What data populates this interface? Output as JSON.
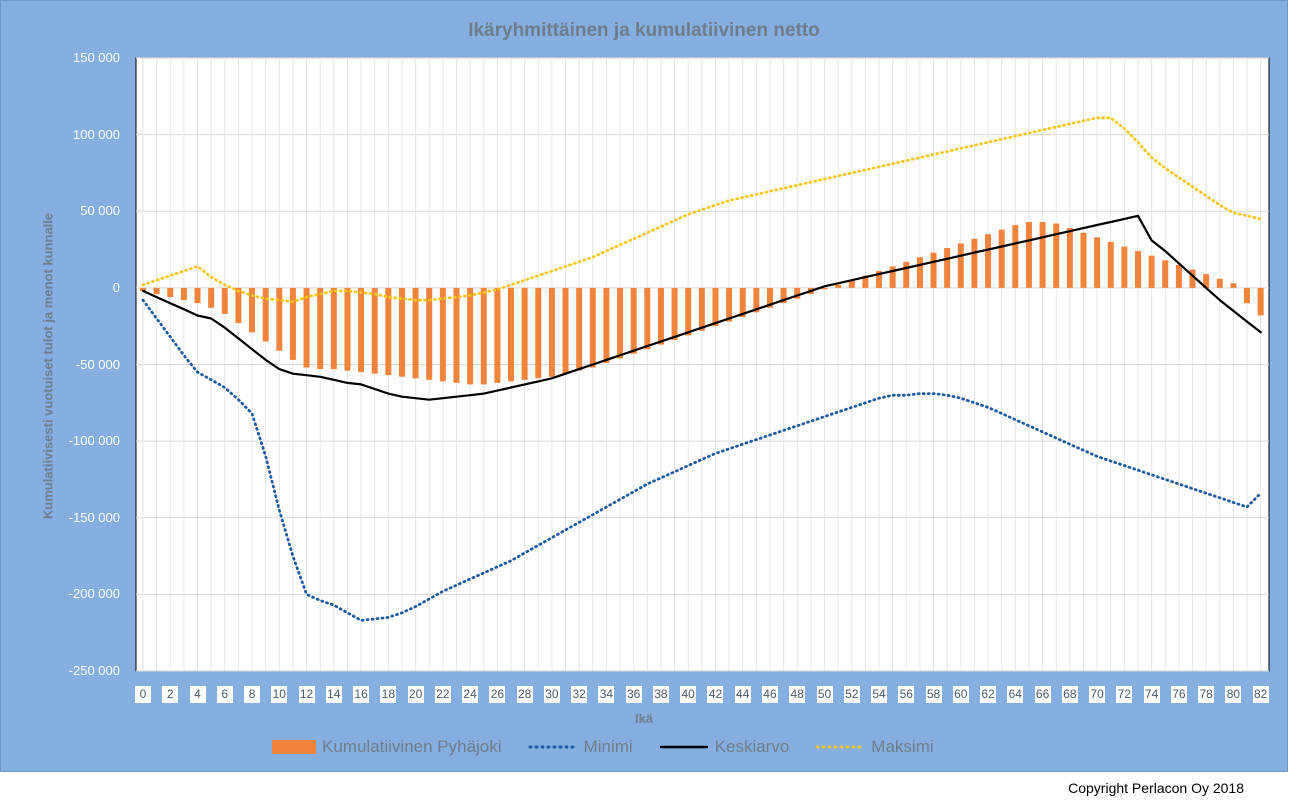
{
  "chart_data": {
    "type": "bar",
    "title": "Ikäryhmittäinen ja kumulatiivinen netto",
    "xlabel": "Ikä",
    "ylabel": "Kumulatiivisesti vuotuiset tulot ja menot kunnalle",
    "ylim": [
      -250000,
      150000
    ],
    "y_ticks": [
      "150 000",
      "100 000",
      "50 000",
      "0",
      "-50 000",
      "-100 000",
      "-150 000",
      "-200 000",
      "-250 000"
    ],
    "y_tick_values": [
      150000,
      100000,
      50000,
      0,
      -50000,
      -100000,
      -150000,
      -200000,
      -250000
    ],
    "x": [
      0,
      1,
      2,
      3,
      4,
      5,
      6,
      7,
      8,
      9,
      10,
      11,
      12,
      13,
      14,
      15,
      16,
      17,
      18,
      19,
      20,
      21,
      22,
      23,
      24,
      25,
      26,
      27,
      28,
      29,
      30,
      31,
      32,
      33,
      34,
      35,
      36,
      37,
      38,
      39,
      40,
      41,
      42,
      43,
      44,
      45,
      46,
      47,
      48,
      49,
      50,
      51,
      52,
      53,
      54,
      55,
      56,
      57,
      58,
      59,
      60,
      61,
      62,
      63,
      64,
      65,
      66,
      67,
      68,
      69,
      70,
      71,
      72,
      73,
      74,
      75,
      76,
      77,
      78,
      79,
      80,
      81,
      82
    ],
    "x_tick_labels": [
      "0",
      "2",
      "4",
      "6",
      "8",
      "10",
      "12",
      "14",
      "16",
      "18",
      "20",
      "22",
      "24",
      "26",
      "28",
      "30",
      "32",
      "34",
      "36",
      "38",
      "40",
      "42",
      "44",
      "46",
      "48",
      "50",
      "52",
      "54",
      "56",
      "58",
      "60",
      "62",
      "64",
      "66",
      "68",
      "70",
      "72",
      "74",
      "76",
      "78",
      "80",
      "82"
    ],
    "grid": true,
    "legend_position": "bottom",
    "series": [
      {
        "name": "Kumulatiivinen Pyhäjoki",
        "kind": "bar",
        "color": "#f0843c",
        "values": [
          -2000,
          -4000,
          -6000,
          -8000,
          -10000,
          -13000,
          -17000,
          -23000,
          -29000,
          -35000,
          -41000,
          -47000,
          -52000,
          -53000,
          -53000,
          -54000,
          -55000,
          -56000,
          -57000,
          -58000,
          -59000,
          -60000,
          -61000,
          -62000,
          -63000,
          -63000,
          -62000,
          -61000,
          -60000,
          -59000,
          -58000,
          -56000,
          -54000,
          -52000,
          -49000,
          -46000,
          -43000,
          -40000,
          -37000,
          -34000,
          -31000,
          -28000,
          -25000,
          -22000,
          -19000,
          -16000,
          -13000,
          -10000,
          -7000,
          -4000,
          -1000,
          2000,
          5000,
          8000,
          11000,
          14000,
          17000,
          20000,
          23000,
          26000,
          29000,
          32000,
          35000,
          38000,
          41000,
          43000,
          43000,
          42000,
          39000,
          36000,
          33000,
          30000,
          27000,
          24000,
          21000,
          18000,
          15000,
          12000,
          9000,
          6000,
          3000,
          -10000,
          -18000
        ]
      },
      {
        "name": "Minimi",
        "kind": "line",
        "color": "#1f5aa0",
        "dash": "dotted",
        "values": [
          -8000,
          -20000,
          -32000,
          -44000,
          -55000,
          -60000,
          -65000,
          -73000,
          -82000,
          -110000,
          -145000,
          -175000,
          -200000,
          -204000,
          -207000,
          -212000,
          -217000,
          -216000,
          -215000,
          -212000,
          -208000,
          -203000,
          -198000,
          -194000,
          -190000,
          -186000,
          -182000,
          -178000,
          -173000,
          -168000,
          -163000,
          -158000,
          -153000,
          -148000,
          -143000,
          -138000,
          -133000,
          -128000,
          -124000,
          -120000,
          -116000,
          -112000,
          -108000,
          -105000,
          -102000,
          -99000,
          -96000,
          -93000,
          -90000,
          -87000,
          -84000,
          -81000,
          -78000,
          -75000,
          -72000,
          -70000,
          -70000,
          -69000,
          -69000,
          -70000,
          -72000,
          -75000,
          -78000,
          -82000,
          -86000,
          -90000,
          -94000,
          -98000,
          -102000,
          -106000,
          -110000,
          -113000,
          -116000,
          -119000,
          -122000,
          -125000,
          -128000,
          -131000,
          -134000,
          -137000,
          -140000,
          -143000,
          -134000
        ]
      },
      {
        "name": "Keskiarvo",
        "kind": "line",
        "color": "#000000",
        "dash": "solid",
        "values": [
          -2000,
          -6000,
          -10000,
          -14000,
          -18000,
          -20000,
          -26000,
          -33000,
          -40000,
          -47000,
          -53000,
          -56000,
          -57000,
          -58000,
          -60000,
          -62000,
          -63000,
          -66000,
          -69000,
          -71000,
          -72000,
          -73000,
          -72000,
          -71000,
          -70000,
          -69000,
          -67000,
          -65000,
          -63000,
          -61000,
          -59000,
          -56000,
          -53000,
          -50000,
          -47000,
          -44000,
          -41000,
          -38000,
          -35000,
          -32000,
          -29000,
          -26000,
          -23000,
          -20000,
          -17000,
          -14000,
          -11000,
          -8000,
          -5000,
          -2000,
          1000,
          3000,
          5000,
          7000,
          9000,
          11000,
          13000,
          15000,
          17000,
          19000,
          21000,
          23000,
          25000,
          27000,
          29000,
          31000,
          33000,
          35000,
          37000,
          39000,
          41000,
          43000,
          45000,
          47000,
          31000,
          24000,
          16000,
          8000,
          0,
          -8000,
          -15000,
          -22000,
          -29000
        ]
      },
      {
        "name": "Maksimi",
        "kind": "line",
        "color": "#f5c518",
        "dash": "dotted",
        "values": [
          2000,
          5000,
          8000,
          11000,
          14000,
          7000,
          2000,
          -2000,
          -5000,
          -7000,
          -8000,
          -9000,
          -6000,
          -4000,
          -2000,
          -2000,
          -3000,
          -4000,
          -6000,
          -7000,
          -8000,
          -8000,
          -7000,
          -6000,
          -5000,
          -3000,
          -1000,
          2000,
          5000,
          8000,
          11000,
          14000,
          17000,
          20000,
          24000,
          28000,
          32000,
          36000,
          40000,
          44000,
          48000,
          51000,
          54000,
          57000,
          59000,
          61000,
          63000,
          65000,
          67000,
          69000,
          71000,
          73000,
          75000,
          77000,
          79000,
          81000,
          83000,
          85000,
          87000,
          89000,
          91000,
          93000,
          95000,
          97000,
          99000,
          101000,
          103000,
          105000,
          107000,
          109000,
          111000,
          111000,
          104000,
          95000,
          85000,
          78000,
          72000,
          66000,
          60000,
          54000,
          49000,
          47000,
          45000
        ]
      }
    ]
  },
  "copyright": "Copyright Perlacon Oy 2018"
}
